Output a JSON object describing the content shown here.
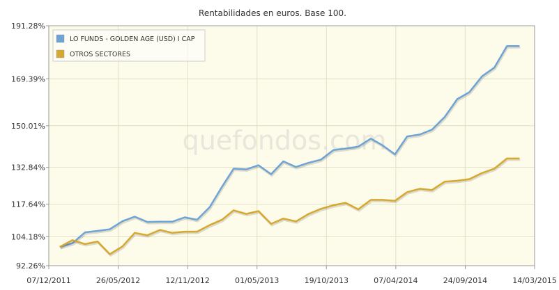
{
  "chart_data": {
    "type": "line",
    "title": "Rentabilidades en euros. Base 100.",
    "watermark": "quefondos.com",
    "xlabel": "",
    "ylabel": "",
    "x_tick_labels": [
      "07/12/2011",
      "26/05/2012",
      "12/11/2012",
      "01/05/2013",
      "19/10/2013",
      "07/04/2014",
      "24/09/2014",
      "14/03/2015"
    ],
    "y_tick_labels": [
      "92.26%",
      "104.18%",
      "117.64%",
      "132.84%",
      "150.01%",
      "169.39%",
      "191.28%"
    ],
    "y_tick_values": [
      92.26,
      104.18,
      117.64,
      132.84,
      150.01,
      169.39,
      191.28
    ],
    "ylim": [
      92.26,
      191.28
    ],
    "xlim": [
      "2011-12-07",
      "2015-03-14"
    ],
    "grid": true,
    "legend_position": "top-left",
    "colors": {
      "plot_background": "#fdfbe9",
      "grid": "#e4e0c6",
      "axis": "#999999",
      "legend_border": "#cccccc"
    },
    "series": [
      {
        "name": "LO FUNDS - GOLDEN AGE (USD) I CAP",
        "color": "#6ea3d6",
        "x": [
          "2012-01-03",
          "2012-02-03",
          "2012-03-05",
          "2012-04-05",
          "2012-05-05",
          "2012-06-05",
          "2012-07-05",
          "2012-08-05",
          "2012-09-05",
          "2012-10-05",
          "2012-11-05",
          "2012-12-05",
          "2013-01-05",
          "2013-02-05",
          "2013-03-05",
          "2013-04-05",
          "2013-05-05",
          "2013-06-05",
          "2013-07-05",
          "2013-08-05",
          "2013-09-05",
          "2013-10-05",
          "2013-11-05",
          "2013-12-05",
          "2014-01-05",
          "2014-02-05",
          "2014-03-05",
          "2014-04-05",
          "2014-05-05",
          "2014-06-05",
          "2014-07-05",
          "2014-08-05",
          "2014-09-05",
          "2014-10-05",
          "2014-11-05",
          "2014-12-05",
          "2015-01-05",
          "2015-02-05"
        ],
        "values": [
          100.0,
          101.5,
          106.0,
          106.6,
          107.3,
          110.6,
          112.5,
          110.3,
          110.4,
          110.4,
          112.2,
          111.2,
          116.4,
          125.0,
          132.3,
          132.0,
          133.7,
          130.0,
          135.3,
          133.0,
          134.7,
          136.0,
          140.0,
          140.6,
          141.4,
          144.7,
          142.0,
          138.2,
          145.6,
          146.4,
          148.4,
          153.6,
          161.0,
          163.9,
          170.4,
          174.0,
          182.9,
          182.9
        ]
      },
      {
        "name": "OTROS SECTORES",
        "color": "#d6a82f",
        "x": [
          "2012-01-03",
          "2012-02-03",
          "2012-03-05",
          "2012-04-05",
          "2012-05-05",
          "2012-06-05",
          "2012-07-05",
          "2012-08-05",
          "2012-09-05",
          "2012-10-05",
          "2012-11-05",
          "2012-12-05",
          "2013-01-05",
          "2013-02-05",
          "2013-03-05",
          "2013-04-05",
          "2013-05-05",
          "2013-06-05",
          "2013-07-05",
          "2013-08-05",
          "2013-09-05",
          "2013-10-05",
          "2013-11-05",
          "2013-12-05",
          "2014-01-05",
          "2014-02-05",
          "2014-03-05",
          "2014-04-05",
          "2014-05-05",
          "2014-06-05",
          "2014-07-05",
          "2014-08-05",
          "2014-09-05",
          "2014-10-05",
          "2014-11-05",
          "2014-12-05",
          "2015-01-05",
          "2015-02-05"
        ],
        "values": [
          100.0,
          102.8,
          101.2,
          102.2,
          97.0,
          100.2,
          105.8,
          104.8,
          107.0,
          105.8,
          106.3,
          106.3,
          109.0,
          111.3,
          115.1,
          113.6,
          114.8,
          109.5,
          111.7,
          110.5,
          113.6,
          115.7,
          117.2,
          118.2,
          115.5,
          119.4,
          119.4,
          119.0,
          122.6,
          124.0,
          123.5,
          126.9,
          127.3,
          128.0,
          130.5,
          132.3,
          136.5,
          136.5
        ]
      }
    ]
  }
}
